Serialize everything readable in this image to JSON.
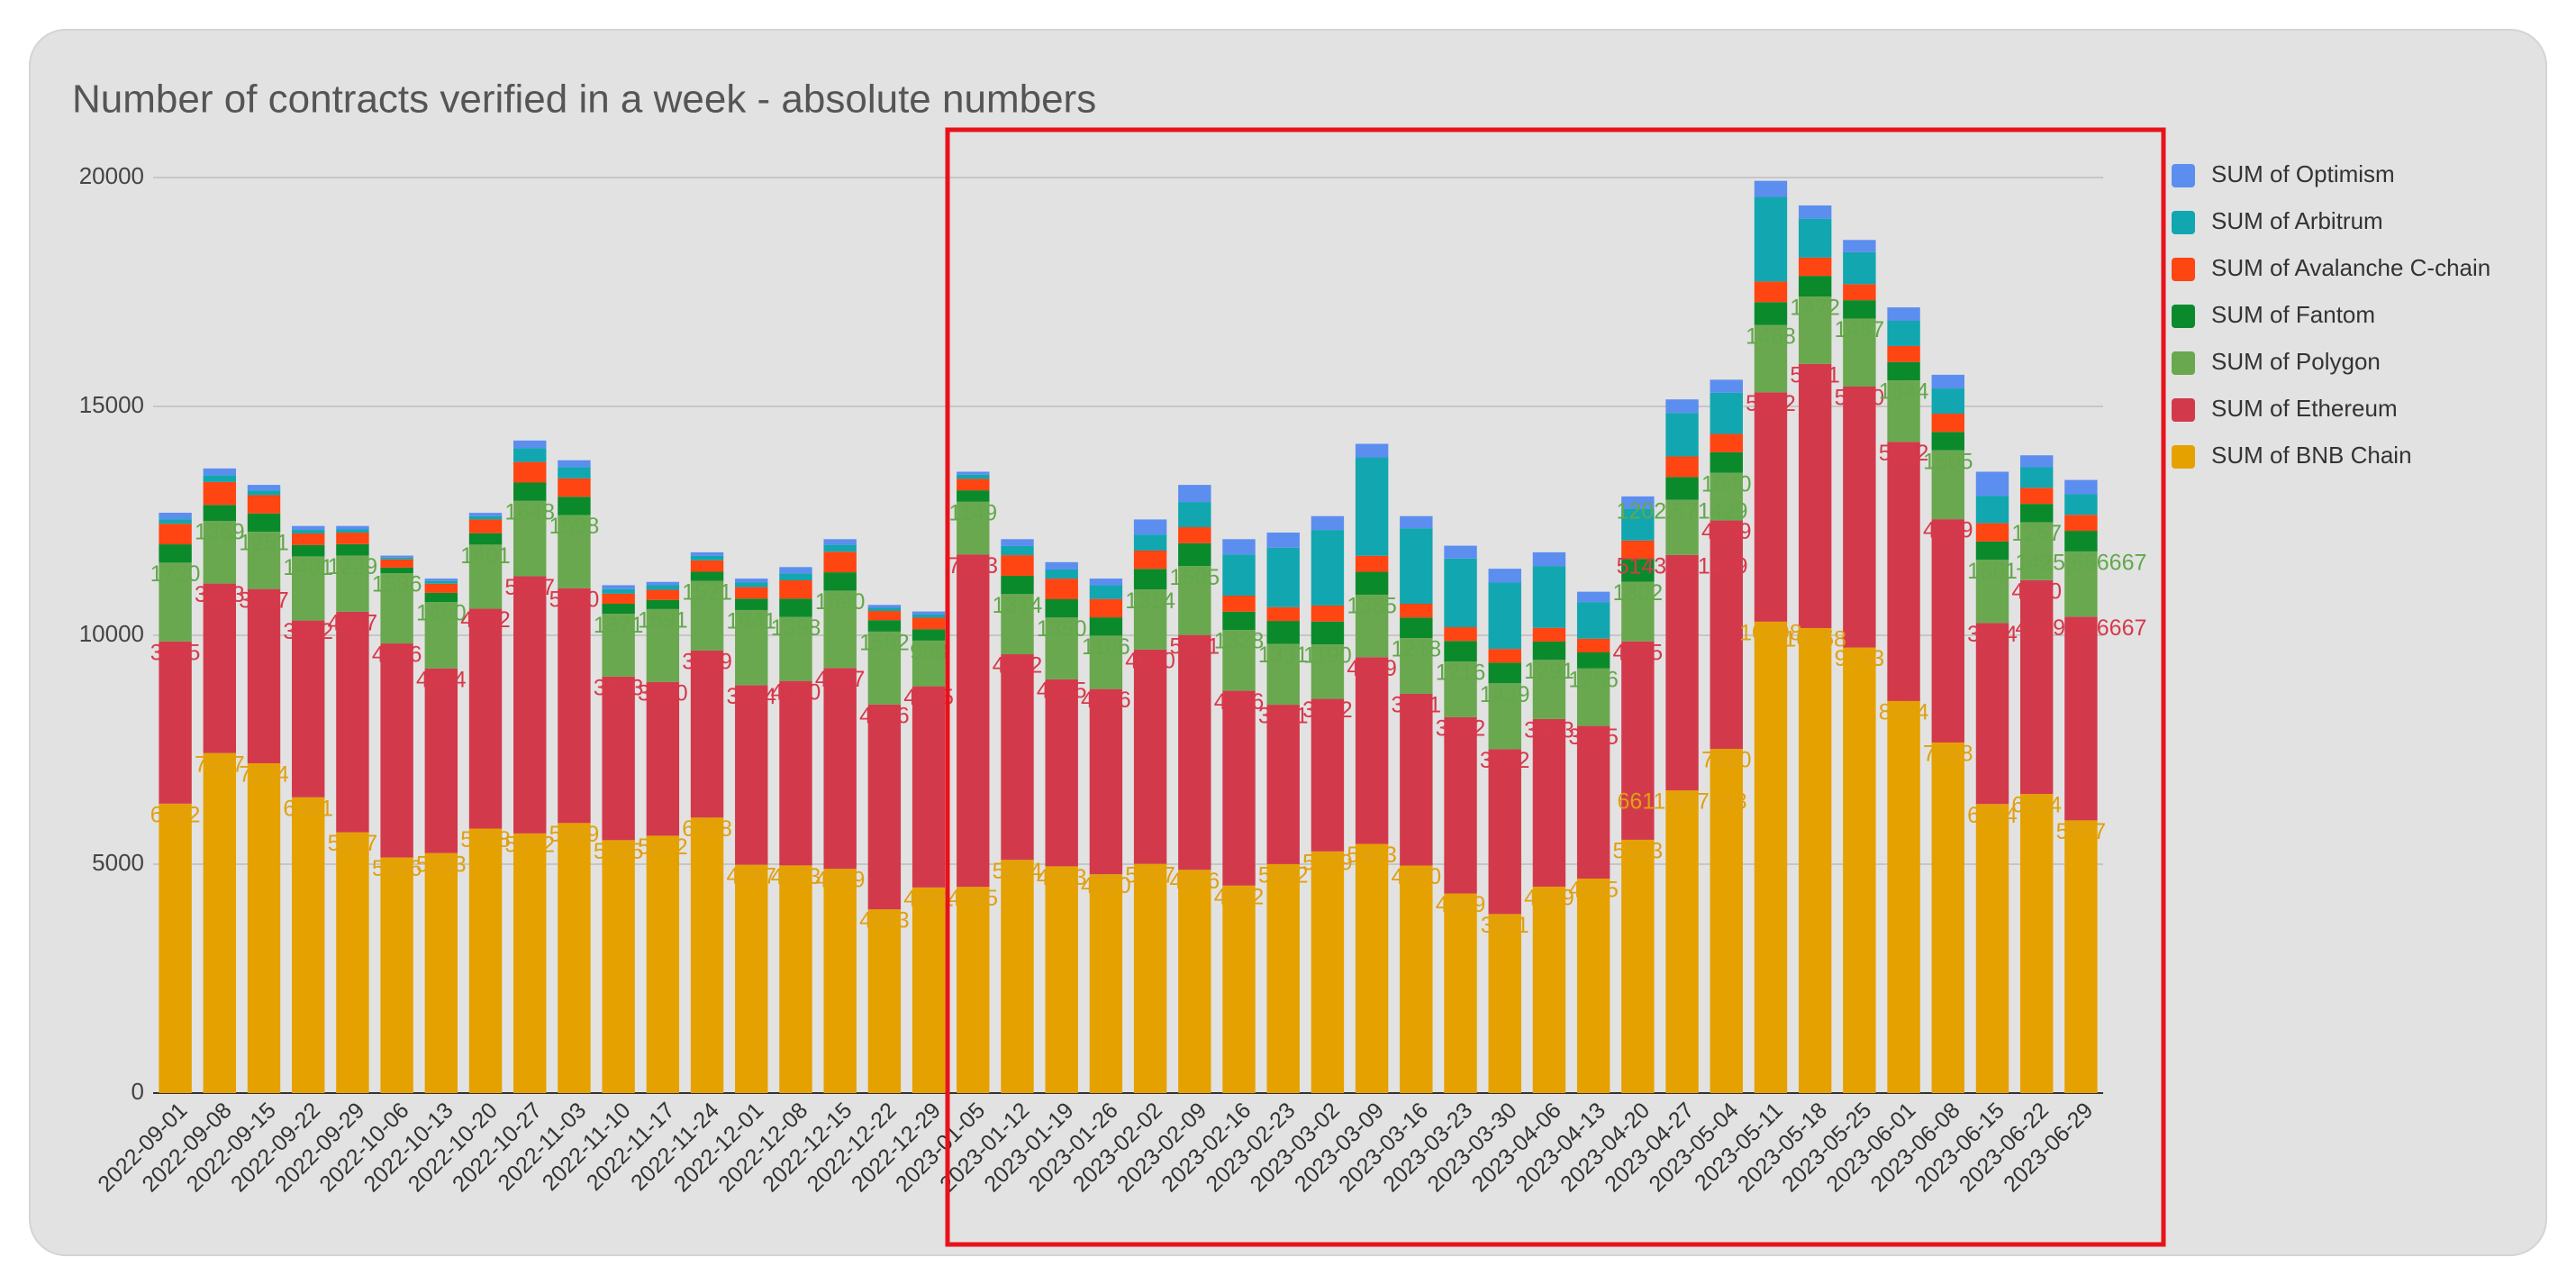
{
  "chart_data": {
    "type": "stacked-bar",
    "title": "Number of contracts verified in a week - absolute numbers",
    "categories": [
      "2022-09-01",
      "2022-09-08",
      "2022-09-15",
      "2022-09-22",
      "2022-09-29",
      "2022-10-06",
      "2022-10-13",
      "2022-10-20",
      "2022-10-27",
      "2022-11-03",
      "2022-11-10",
      "2022-11-17",
      "2022-11-24",
      "2022-12-01",
      "2022-12-08",
      "2022-12-15",
      "2022-12-22",
      "2022-12-29",
      "2023-01-05",
      "2023-01-12",
      "2023-01-19",
      "2023-01-26",
      "2023-02-02",
      "2023-02-09",
      "2023-02-16",
      "2023-02-23",
      "2023-03-02",
      "2023-03-09",
      "2023-03-16",
      "2023-03-23",
      "2023-03-30",
      "2023-04-06",
      "2023-04-13",
      "2023-04-20",
      "2023-04-27",
      "2023-05-04",
      "2023-05-11",
      "2023-05-18",
      "2023-05-25",
      "2023-06-01",
      "2023-06-08",
      "2023-06-15",
      "2023-06-22",
      "2023-06-29"
    ],
    "series": [
      {
        "name": "SUM of BNB Chain",
        "color": "#e5a100",
        "label_color": "#e0a010",
        "data_labels": true,
        "values": [
          6322,
          7427,
          7204,
          6461,
          5697,
          5146,
          5243,
          5778,
          5672,
          5899,
          5525,
          5622,
          6018,
          4987,
          4973,
          4899,
          4013,
          4491,
          4505,
          5094,
          4953,
          4780,
          5007,
          4876,
          4532,
          5002,
          5279,
          5443,
          4970,
          4359,
          3911,
          4509,
          4685,
          5533,
          6611.857143,
          7520,
          10298,
          10158,
          9733,
          8564,
          7658,
          6314,
          6534,
          5957
        ]
      },
      {
        "name": "SUM of Ethereum",
        "color": "#d23a4c",
        "label_color": "#d8384a",
        "data_labels": true,
        "values": [
          3545,
          3703,
          3807,
          3862,
          4817,
          4676,
          4034,
          4802,
          5617,
          5130,
          3573,
          3360,
          3649,
          3924,
          4030,
          4387,
          4476,
          4395,
          7263,
          4492,
          4085,
          4046,
          4680,
          5131,
          4256,
          3481,
          3332,
          4079,
          3751,
          3852,
          3602,
          3663,
          3335,
          4335,
          5143.571429,
          4989,
          5012,
          5771,
          5700,
          5662,
          4879,
          3954,
          4670,
          4449.666667
        ]
      },
      {
        "name": "SUM of Polygon",
        "color": "#6aa84f",
        "label_color": "#62a84a",
        "data_labels": true,
        "values": [
          1720,
          1369,
          1251,
          1401,
          1229,
          1536,
          1450,
          1401,
          1648,
          1598,
          1371,
          1591,
          1521,
          1641,
          1398,
          1690,
          1592,
          998,
          1149,
          1314,
          1350,
          1166,
          1314,
          1505,
          1328,
          1331,
          1190,
          1365,
          1218,
          1216,
          1439,
          1291,
          1256,
          1302,
          1202.571429,
          1040,
          1468,
          1472,
          1487,
          1344,
          1505,
          1381,
          1267,
          1425.666667
        ]
      },
      {
        "name": "SUM of Fantom",
        "color": "#0b8a2c",
        "data_labels": false,
        "values": [
          400,
          350,
          400,
          250,
          250,
          120,
          200,
          250,
          400,
          400,
          220,
          200,
          200,
          250,
          400,
          400,
          250,
          250,
          250,
          400,
          400,
          400,
          450,
          500,
          400,
          500,
          500,
          500,
          450,
          450,
          450,
          400,
          350,
          500,
          500,
          450,
          500,
          450,
          400,
          400,
          400,
          400,
          400,
          450
        ]
      },
      {
        "name": "SUM of Avalanche C-chain",
        "color": "#ff4512",
        "data_labels": false,
        "values": [
          450,
          500,
          400,
          250,
          250,
          180,
          200,
          300,
          450,
          400,
          220,
          220,
          250,
          250,
          400,
          450,
          200,
          250,
          250,
          450,
          450,
          400,
          400,
          350,
          350,
          300,
          350,
          350,
          300,
          300,
          300,
          300,
          300,
          400,
          450,
          400,
          450,
          400,
          350,
          350,
          400,
          400,
          350,
          350
        ]
      },
      {
        "name": "SUM of Arbitrum",
        "color": "#12a6b0",
        "data_labels": false,
        "values": [
          100,
          150,
          100,
          80,
          70,
          40,
          60,
          70,
          300,
          250,
          100,
          100,
          100,
          100,
          150,
          150,
          70,
          70,
          90,
          200,
          200,
          300,
          350,
          550,
          900,
          1300,
          1650,
          2150,
          1650,
          1500,
          1450,
          1350,
          800,
          700,
          950,
          900,
          1850,
          850,
          700,
          550,
          550,
          600,
          450,
          450
        ]
      },
      {
        "name": "SUM of Optimism",
        "color": "#5c8ef0",
        "data_labels": false,
        "values": [
          140,
          146,
          123,
          84,
          75,
          43,
          52,
          74,
          168,
          147,
          86,
          74,
          75,
          87,
          139,
          124,
          63,
          66,
          66,
          150,
          160,
          147,
          330,
          373,
          334,
          330,
          302,
          296,
          264,
          280,
          302,
          300,
          226,
          264,
          295,
          284,
          350,
          289,
          266,
          293,
          299,
          524,
          261,
          311
        ]
      }
    ],
    "ylim": [
      0,
      20000
    ],
    "yticks": [
      0,
      5000,
      10000,
      15000,
      20000
    ],
    "grid": true,
    "legend": "right"
  }
}
